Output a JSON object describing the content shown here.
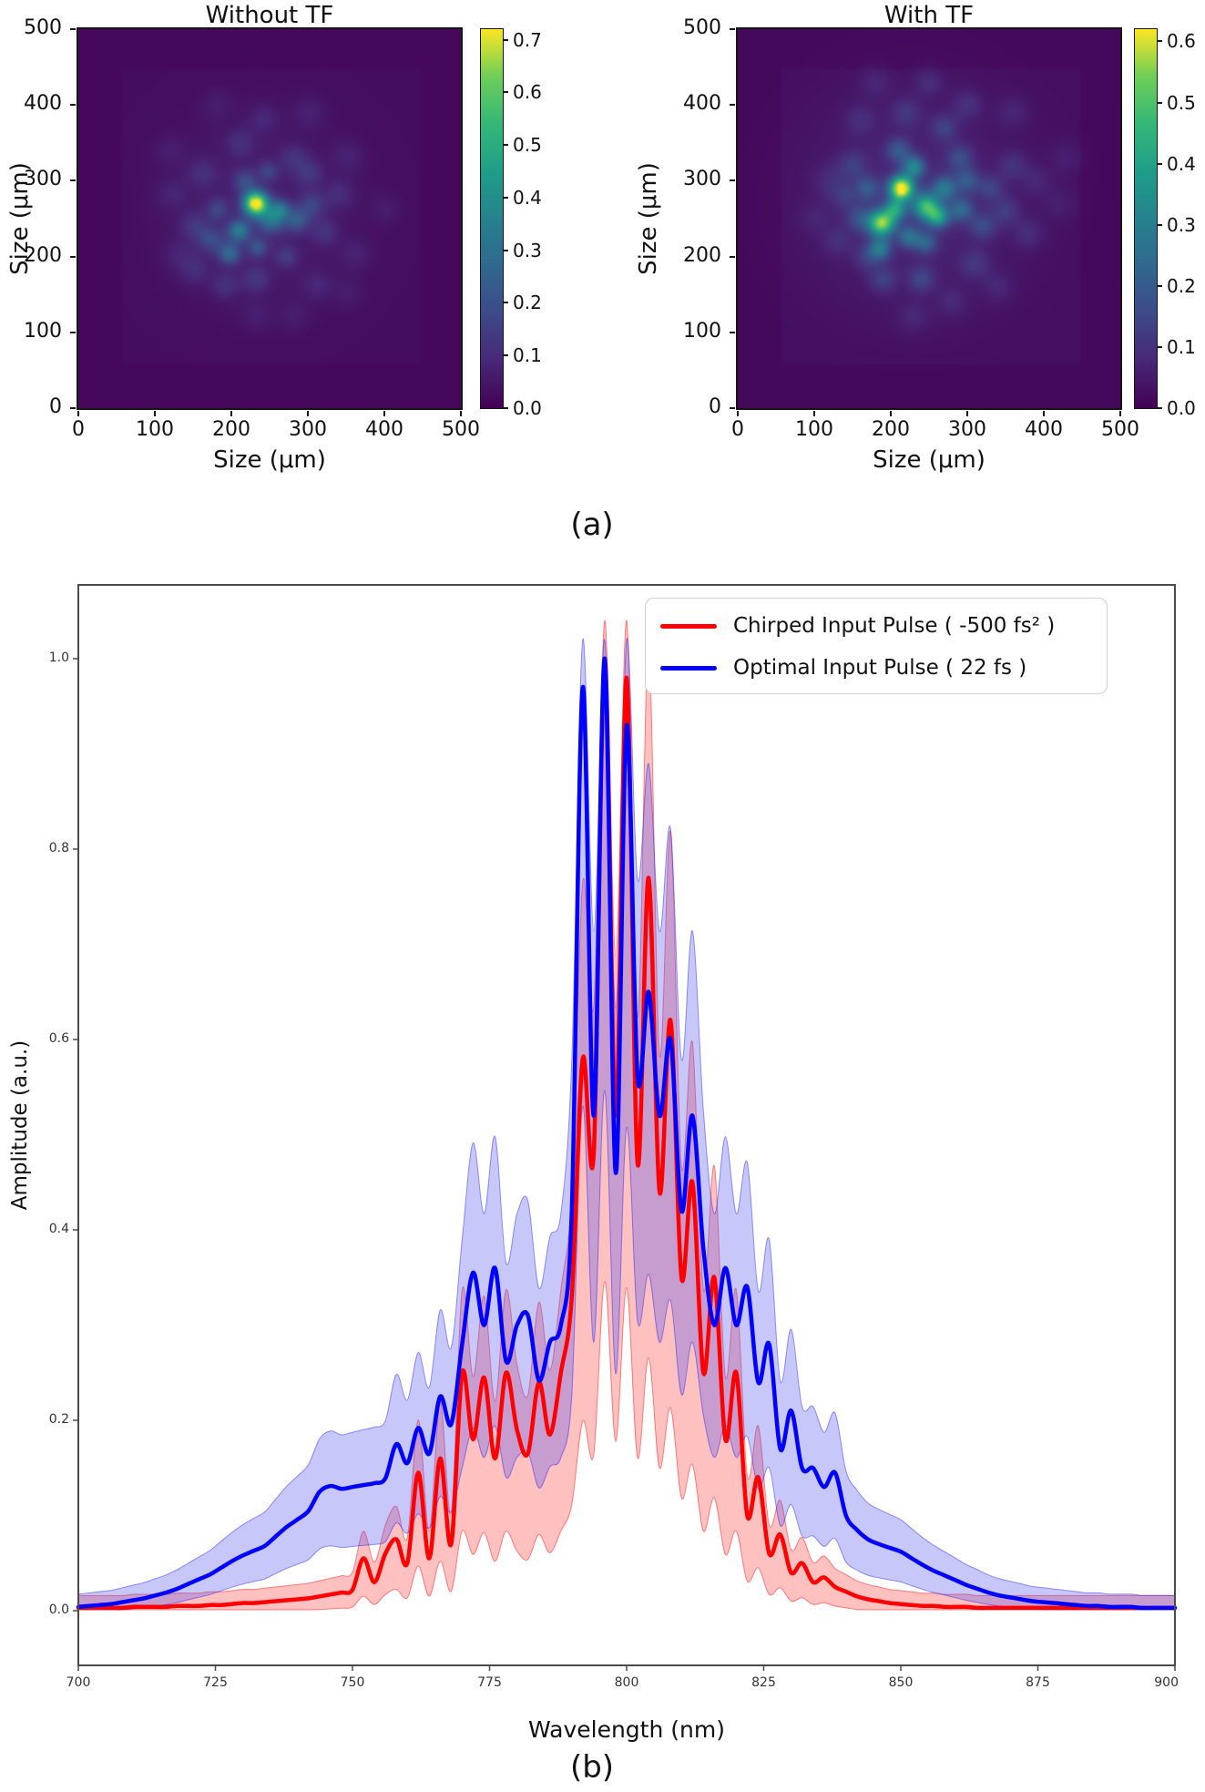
{
  "figure": {
    "panel_a_label": "(a)",
    "panel_b_label": "(b)"
  },
  "colors": {
    "red": "#ff0000",
    "blue": "#0000ff",
    "axis": "#4a4a4a",
    "tick": "#1a1a1a",
    "heat_background": "#440154",
    "viridis": [
      [
        0,
        "#440154"
      ],
      [
        0.125,
        "#482878"
      ],
      [
        0.25,
        "#3e4a89"
      ],
      [
        0.375,
        "#31688e"
      ],
      [
        0.5,
        "#26828e"
      ],
      [
        0.625,
        "#1f9e89"
      ],
      [
        0.75,
        "#35b779"
      ],
      [
        0.875,
        "#6ece58"
      ],
      [
        1,
        "#fde725"
      ]
    ]
  },
  "chart_data": [
    {
      "type": "heatmap",
      "title": "Without TF",
      "xlabel": "Size (μm)",
      "ylabel": "Size (μm)",
      "xticks": [
        0,
        100,
        200,
        300,
        400,
        500
      ],
      "yticks": [
        0,
        100,
        200,
        300,
        400,
        500
      ],
      "xlim": [
        0,
        500
      ],
      "ylim": [
        0,
        500
      ],
      "vmax": 0.72,
      "colorbar_ticks": [
        "0.0",
        "0.1",
        "0.2",
        "0.3",
        "0.4",
        "0.5",
        "0.6",
        "0.7"
      ],
      "base": 0.015,
      "inner": [
        55,
        450,
        55,
        450,
        0.012
      ],
      "blobs": [
        [
          232,
          270,
          11,
          0.72
        ],
        [
          210,
          234,
          10,
          0.28
        ],
        [
          252,
          248,
          12,
          0.24
        ],
        [
          264,
          262,
          9,
          0.22
        ],
        [
          198,
          204,
          10,
          0.22
        ],
        [
          234,
          212,
          9,
          0.16
        ],
        [
          286,
          248,
          11,
          0.17
        ],
        [
          174,
          222,
          12,
          0.13
        ],
        [
          306,
          268,
          12,
          0.11
        ],
        [
          218,
          300,
          10,
          0.13
        ],
        [
          248,
          312,
          9,
          0.11
        ],
        [
          182,
          262,
          10,
          0.11
        ],
        [
          152,
          240,
          13,
          0.08
        ],
        [
          302,
          310,
          12,
          0.08
        ],
        [
          272,
          200,
          10,
          0.09
        ],
        [
          232,
          170,
          12,
          0.08
        ],
        [
          192,
          162,
          12,
          0.07
        ],
        [
          152,
          182,
          13,
          0.06
        ],
        [
          322,
          232,
          12,
          0.07
        ],
        [
          342,
          282,
          13,
          0.06
        ],
        [
          282,
          330,
          12,
          0.07
        ],
        [
          212,
          350,
          13,
          0.06
        ],
        [
          162,
          310,
          13,
          0.06
        ],
        [
          122,
          282,
          14,
          0.04
        ],
        [
          352,
          332,
          14,
          0.04
        ],
        [
          312,
          162,
          13,
          0.05
        ],
        [
          362,
          202,
          14,
          0.04
        ],
        [
          132,
          202,
          14,
          0.04
        ],
        [
          242,
          382,
          13,
          0.05
        ],
        [
          182,
          400,
          14,
          0.03
        ],
        [
          302,
          390,
          14,
          0.04
        ],
        [
          352,
          152,
          14,
          0.03
        ],
        [
          402,
          262,
          14,
          0.03
        ],
        [
          232,
          122,
          14,
          0.03
        ],
        [
          282,
          122,
          14,
          0.03
        ],
        [
          120,
          340,
          14,
          0.03
        ],
        [
          235,
          260,
          85,
          0.045
        ]
      ]
    },
    {
      "type": "heatmap",
      "title": "With TF",
      "xlabel": "Size (μm)",
      "ylabel": "Size (μm)",
      "xticks": [
        0,
        100,
        200,
        300,
        400,
        500
      ],
      "yticks": [
        0,
        100,
        200,
        300,
        400,
        500
      ],
      "xlim": [
        0,
        500
      ],
      "ylim": [
        0,
        500
      ],
      "vmax": 0.62,
      "colorbar_ticks": [
        "0.0",
        "0.1",
        "0.2",
        "0.3",
        "0.4",
        "0.5",
        "0.6"
      ],
      "base": 0.015,
      "inner": [
        55,
        450,
        55,
        450,
        0.012
      ],
      "blobs": [
        [
          214,
          290,
          11,
          0.62
        ],
        [
          188,
          244,
          12,
          0.5
        ],
        [
          246,
          266,
          12,
          0.4
        ],
        [
          262,
          252,
          10,
          0.3
        ],
        [
          206,
          262,
          10,
          0.3
        ],
        [
          230,
          318,
          10,
          0.26
        ],
        [
          270,
          290,
          11,
          0.22
        ],
        [
          186,
          210,
          10,
          0.22
        ],
        [
          224,
          226,
          10,
          0.2
        ],
        [
          292,
          262,
          11,
          0.18
        ],
        [
          246,
          218,
          10,
          0.16
        ],
        [
          300,
          300,
          11,
          0.14
        ],
        [
          170,
          290,
          11,
          0.14
        ],
        [
          210,
          340,
          11,
          0.14
        ],
        [
          160,
          250,
          12,
          0.12
        ],
        [
          320,
          240,
          12,
          0.11
        ],
        [
          290,
          330,
          12,
          0.11
        ],
        [
          240,
          170,
          12,
          0.1
        ],
        [
          190,
          170,
          12,
          0.09
        ],
        [
          330,
          290,
          12,
          0.09
        ],
        [
          150,
          320,
          13,
          0.08
        ],
        [
          270,
          370,
          12,
          0.09
        ],
        [
          350,
          260,
          13,
          0.08
        ],
        [
          170,
          200,
          12,
          0.08
        ],
        [
          140,
          280,
          13,
          0.07
        ],
        [
          220,
          390,
          13,
          0.07
        ],
        [
          310,
          190,
          13,
          0.07
        ],
        [
          360,
          320,
          13,
          0.06
        ],
        [
          130,
          220,
          13,
          0.05
        ],
        [
          250,
          430,
          13,
          0.05
        ],
        [
          300,
          400,
          13,
          0.06
        ],
        [
          380,
          230,
          14,
          0.05
        ],
        [
          160,
          380,
          14,
          0.05
        ],
        [
          120,
          300,
          14,
          0.04
        ],
        [
          390,
          300,
          14,
          0.04
        ],
        [
          230,
          120,
          14,
          0.04
        ],
        [
          100,
          250,
          14,
          0.03
        ],
        [
          420,
          270,
          15,
          0.03
        ],
        [
          180,
          430,
          14,
          0.04
        ],
        [
          340,
          160,
          14,
          0.04
        ],
        [
          280,
          140,
          14,
          0.04
        ],
        [
          430,
          330,
          15,
          0.03
        ],
        [
          360,
          390,
          14,
          0.04
        ],
        [
          230,
          275,
          90,
          0.05
        ]
      ]
    },
    {
      "type": "line",
      "xlabel": "Wavelength (nm)",
      "ylabel": "Amplitude (a.u.)",
      "xlim": [
        700,
        900
      ],
      "ylim": [
        -0.06,
        1.08
      ],
      "xticks": [
        700,
        725,
        750,
        775,
        800,
        825,
        850,
        875,
        900
      ],
      "yticks": [
        "0.0",
        "0.2",
        "0.4",
        "0.6",
        "0.8",
        "1.0"
      ],
      "x_start": 700,
      "x_step": 2,
      "grid": false,
      "legend_position": "upper right",
      "series": [
        {
          "name": "Chirped Input Pulse ( -500 fs² )",
          "color": "#ff0000",
          "band_fill": "rgba(255,45,45,0.30)",
          "band_edge": "rgba(255,0,0,0.45)",
          "band": {
            "upper_scale": 1.3,
            "lower_scale": 0.35,
            "pad": 0.012,
            "cap": 1.04
          },
          "values": [
            0.003,
            0.003,
            0.003,
            0.003,
            0.003,
            0.004,
            0.004,
            0.004,
            0.004,
            0.005,
            0.005,
            0.005,
            0.006,
            0.006,
            0.007,
            0.008,
            0.008,
            0.009,
            0.01,
            0.011,
            0.012,
            0.013,
            0.015,
            0.017,
            0.019,
            0.022,
            0.055,
            0.03,
            0.06,
            0.075,
            0.05,
            0.145,
            0.055,
            0.16,
            0.07,
            0.25,
            0.18,
            0.245,
            0.16,
            0.25,
            0.19,
            0.165,
            0.24,
            0.185,
            0.25,
            0.33,
            0.58,
            0.48,
            1.0,
            0.52,
            0.98,
            0.47,
            0.77,
            0.44,
            0.62,
            0.35,
            0.45,
            0.25,
            0.35,
            0.18,
            0.25,
            0.1,
            0.14,
            0.06,
            0.08,
            0.04,
            0.05,
            0.03,
            0.035,
            0.025,
            0.02,
            0.015,
            0.012,
            0.01,
            0.008,
            0.007,
            0.006,
            0.005,
            0.005,
            0.004,
            0.004,
            0.004,
            0.003,
            0.003,
            0.003,
            0.003,
            0.003,
            0.003,
            0.003,
            0.003,
            0.003,
            0.003,
            0.003,
            0.003,
            0.003,
            0.003,
            0.003,
            0.003,
            0.003,
            0.003,
            0.003
          ]
        },
        {
          "name": "Optimal Input Pulse ( 22 fs )",
          "color": "#0000ff",
          "band_fill": "rgba(80,80,235,0.32)",
          "band_edge": "rgba(0,0,255,0.40)",
          "band": {
            "upper_scale": 1.35,
            "lower_scale": 0.55,
            "pad": 0.012,
            "cap": 1.02
          },
          "values": [
            0.004,
            0.005,
            0.006,
            0.007,
            0.009,
            0.011,
            0.013,
            0.016,
            0.019,
            0.023,
            0.028,
            0.033,
            0.038,
            0.045,
            0.052,
            0.058,
            0.063,
            0.068,
            0.078,
            0.088,
            0.096,
            0.105,
            0.125,
            0.131,
            0.128,
            0.13,
            0.132,
            0.134,
            0.139,
            0.175,
            0.155,
            0.192,
            0.165,
            0.225,
            0.196,
            0.28,
            0.355,
            0.3,
            0.36,
            0.262,
            0.3,
            0.31,
            0.242,
            0.282,
            0.3,
            0.42,
            0.97,
            0.52,
            1.0,
            0.46,
            0.93,
            0.56,
            0.65,
            0.52,
            0.6,
            0.42,
            0.52,
            0.38,
            0.3,
            0.36,
            0.3,
            0.34,
            0.24,
            0.28,
            0.17,
            0.21,
            0.15,
            0.15,
            0.13,
            0.145,
            0.1,
            0.085,
            0.075,
            0.07,
            0.066,
            0.062,
            0.055,
            0.048,
            0.042,
            0.037,
            0.032,
            0.027,
            0.023,
            0.019,
            0.016,
            0.014,
            0.012,
            0.01,
            0.009,
            0.008,
            0.007,
            0.006,
            0.005,
            0.005,
            0.004,
            0.004,
            0.004,
            0.003,
            0.003,
            0.003,
            0.003
          ]
        }
      ]
    }
  ]
}
